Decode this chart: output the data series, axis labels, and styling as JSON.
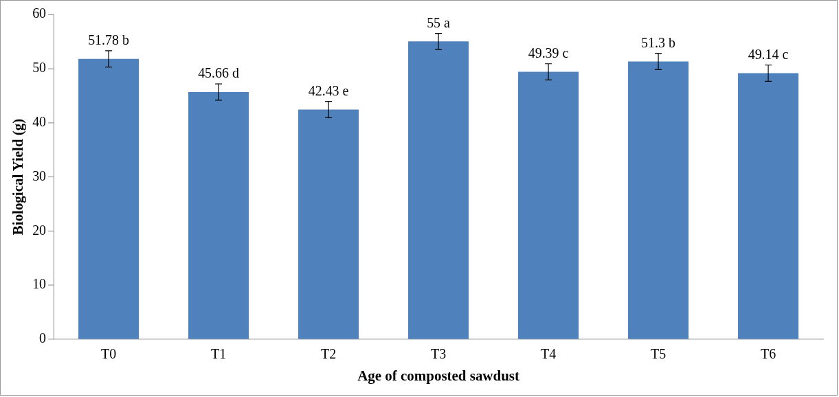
{
  "chart_data": {
    "type": "bar",
    "xlabel": "Age of composted sawdust",
    "ylabel": "Biological Yield (g)",
    "categories": [
      "T0",
      "T1",
      "T2",
      "T3",
      "T4",
      "T5",
      "T6"
    ],
    "values": [
      51.78,
      45.66,
      42.43,
      55,
      49.39,
      51.3,
      49.14
    ],
    "errors": [
      1.5,
      1.5,
      1.5,
      1.5,
      1.5,
      1.5,
      1.5
    ],
    "value_labels": [
      "51.78 b",
      "45.66 d",
      "42.43 e",
      "55 a",
      "49.39 c",
      "51.3 b",
      "49.14 c"
    ],
    "color": "#4f81bd",
    "ylim": [
      0,
      60
    ],
    "yticks": [
      0,
      10,
      20,
      30,
      40,
      50,
      60
    ],
    "grid": false,
    "legend": false
  }
}
